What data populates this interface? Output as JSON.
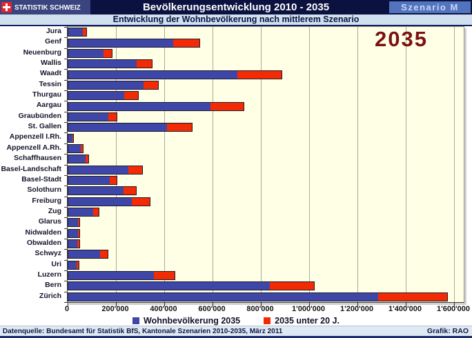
{
  "header": {
    "logo_text": "STATISTIK SCHWEIZ",
    "title": "Bevölkerungsentwicklung 2010 - 2035",
    "scenario_badge": "Szenario M",
    "subtitle": "Entwicklung der Wohnbevölkerung nach mittlerem Szenario"
  },
  "annotation_year": "2035",
  "chart_data": {
    "type": "bar",
    "orientation": "horizontal",
    "stacked": true,
    "title": "Entwicklung der Wohnbevölkerung nach mittlerem Szenario",
    "categories": [
      "Jura",
      "Genf",
      "Neuenburg",
      "Wallis",
      "Waadt",
      "Tessin",
      "Thurgau",
      "Aargau",
      "Graubünden",
      "St. Gallen",
      "Appenzell I.Rh.",
      "Appenzell A.Rh.",
      "Schaffhausen",
      "Basel-Landschaft",
      "Basel-Stadt",
      "Solothurn",
      "Freiburg",
      "Zug",
      "Glarus",
      "Nidwalden",
      "Obwalden",
      "Schwyz",
      "Uri",
      "Luzern",
      "Bern",
      "Zürich"
    ],
    "series": [
      {
        "name": "Wohnbevölkerung 2035",
        "color": "#3e46a8",
        "values": [
          60000,
          435000,
          145000,
          284000,
          701000,
          311000,
          232000,
          589000,
          166000,
          409000,
          16000,
          50000,
          70000,
          249000,
          171000,
          228000,
          263000,
          104000,
          40000,
          39000,
          37000,
          132000,
          33000,
          354000,
          834000,
          1282000
        ]
      },
      {
        "name": "2035 unter 20 J.",
        "color": "#f22b04",
        "values": [
          15000,
          109000,
          36000,
          63000,
          182000,
          60000,
          57000,
          136000,
          35000,
          102000,
          5000,
          11000,
          13000,
          56000,
          30000,
          52000,
          74000,
          21000,
          7000,
          8000,
          8000,
          31000,
          9000,
          86000,
          182000,
          286000
        ]
      }
    ],
    "xlim": [
      0,
      1600000
    ],
    "x_tick_values": [
      0,
      200000,
      400000,
      600000,
      800000,
      1000000,
      1200000,
      1400000,
      1600000
    ],
    "x_tick_labels": [
      "0",
      "200'000",
      "400'000",
      "600'000",
      "800'000",
      "1'000'000",
      "1'200'000",
      "1'400'000",
      "1'600'000"
    ],
    "grid": true,
    "plot_bg": "#ffffe6",
    "gridline_color": "#a9ab9b",
    "legend_position": "bottom"
  },
  "footer": {
    "source": "Datenquelle: Bundesamt für Statistik BfS, Kantonale Szenarien 2010-2035, März  2011",
    "credit": "Grafik: RAO"
  }
}
